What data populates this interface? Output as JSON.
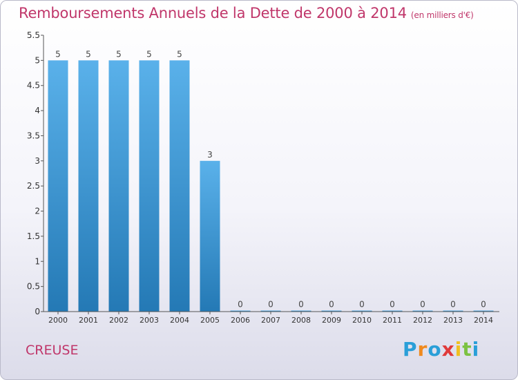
{
  "title": "Remboursements Annuels de la Dette de 2000 à 2014",
  "unit_label": "(en milliers d'€)",
  "region_label": "CREUSE",
  "logo_text": "Proxiti",
  "colors": {
    "title": "#c0366a",
    "bar_top": "#5ab1ea",
    "bar_bottom": "#2479b5",
    "axis": "#555555"
  },
  "chart_data": {
    "type": "bar",
    "categories": [
      "2000",
      "2001",
      "2002",
      "2003",
      "2004",
      "2005",
      "2006",
      "2007",
      "2008",
      "2009",
      "2010",
      "2011",
      "2012",
      "2013",
      "2014"
    ],
    "values": [
      5,
      5,
      5,
      5,
      5,
      3,
      0,
      0,
      0,
      0,
      0,
      0,
      0,
      0,
      0
    ],
    "data_labels": [
      "5",
      "5",
      "5",
      "5",
      "5",
      "3",
      "0",
      "0",
      "0",
      "0",
      "0",
      "0",
      "0",
      "0",
      "0"
    ],
    "ylim": [
      0,
      5.5
    ],
    "yticks": [
      "0",
      "0.5",
      "1",
      "1.5",
      "2",
      "2.5",
      "3",
      "3.5",
      "4",
      "4.5",
      "5",
      "5.5"
    ],
    "grid": false,
    "legend": "none"
  }
}
